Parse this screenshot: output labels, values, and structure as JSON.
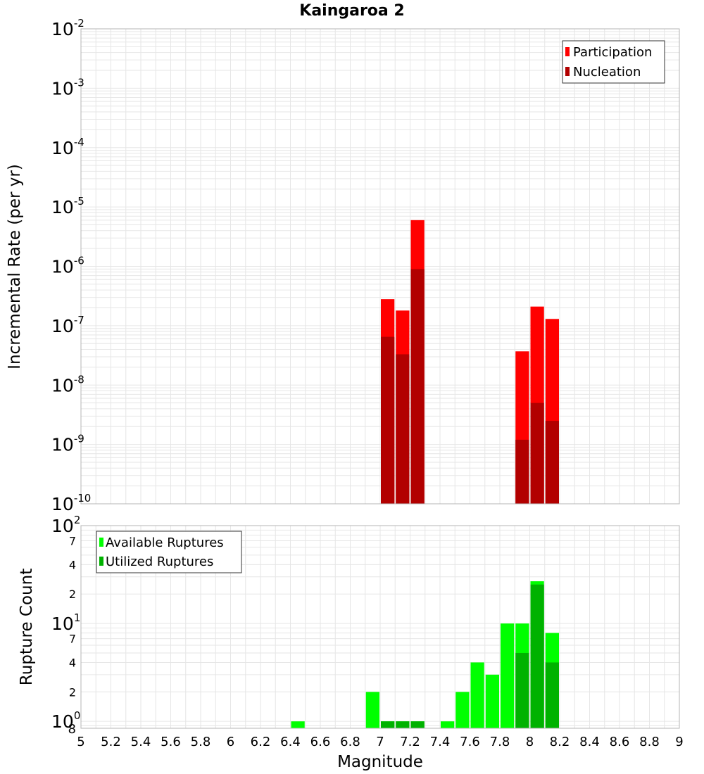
{
  "colors": {
    "participation": "#ff0000",
    "nucleation": "#b20000",
    "available": "#00ff00",
    "utilized": "#00b200",
    "grid": "#e6e6e6",
    "frame": "#b4b4b4"
  },
  "chart_data": [
    {
      "type": "bar",
      "title": "Kaingaroa 2",
      "ylabel": "Incremental Rate (per yr)",
      "xlabel": "",
      "y_scale": "log",
      "ylim": [
        1e-10,
        0.01
      ],
      "xlim": [
        5,
        9
      ],
      "y_tick_labels": [
        {
          "value": 1e-10,
          "base": "10",
          "exp": "-10"
        },
        {
          "value": 1e-09,
          "base": "10",
          "exp": "-9"
        },
        {
          "value": 1e-08,
          "base": "10",
          "exp": "-8"
        },
        {
          "value": 1e-07,
          "base": "10",
          "exp": "-7"
        },
        {
          "value": 1e-06,
          "base": "10",
          "exp": "-6"
        },
        {
          "value": 1e-05,
          "base": "10",
          "exp": "-5"
        },
        {
          "value": 0.0001,
          "base": "10",
          "exp": "-4"
        },
        {
          "value": 0.001,
          "base": "10",
          "exp": "-3"
        },
        {
          "value": 0.01,
          "base": "10",
          "exp": "-2"
        }
      ],
      "legend": {
        "position": "top-right",
        "entries": [
          "Participation",
          "Nucleation"
        ]
      },
      "grid": true,
      "bar_width": 0.1,
      "series": [
        {
          "name": "Participation",
          "x": [
            7.05,
            7.15,
            7.25,
            7.95,
            8.05,
            8.15
          ],
          "values": [
            2.8e-07,
            1.8e-07,
            6e-06,
            3.7e-08,
            2.1e-07,
            1.3e-07
          ]
        },
        {
          "name": "Nucleation",
          "x": [
            7.05,
            7.15,
            7.25,
            7.95,
            8.05,
            8.15
          ],
          "values": [
            6.5e-08,
            3.3e-08,
            9e-07,
            1.2e-09,
            5e-09,
            2.5e-09
          ]
        }
      ]
    },
    {
      "type": "bar",
      "title": "",
      "ylabel": "Rupture Count",
      "xlabel": "Magnitude",
      "y_scale": "log",
      "ylim": [
        0.85,
        100
      ],
      "xlim": [
        5,
        9
      ],
      "x_ticks": [
        "5",
        "5.2",
        "5.4",
        "5.6",
        "5.8",
        "6",
        "6.2",
        "6.4",
        "6.6",
        "6.8",
        "7",
        "7.2",
        "7.4",
        "7.6",
        "7.8",
        "8",
        "8.2",
        "8.4",
        "8.6",
        "8.8",
        "9"
      ],
      "y_tick_labels": [
        {
          "value": 1,
          "base": "10",
          "exp": "0"
        },
        {
          "value": 10,
          "base": "10",
          "exp": "1"
        },
        {
          "value": 100,
          "base": "10",
          "exp": "2"
        }
      ],
      "y_minor_labels": [
        {
          "value": 2,
          "label": "2"
        },
        {
          "value": 4,
          "label": "4"
        },
        {
          "value": 7,
          "label": "7"
        },
        {
          "value": 20,
          "label": "2"
        },
        {
          "value": 40,
          "label": "4"
        },
        {
          "value": 70,
          "label": "7"
        }
      ],
      "y_bottom_label": "8",
      "legend": {
        "position": "top-left",
        "entries": [
          "Available Ruptures",
          "Utilized Ruptures"
        ]
      },
      "grid": true,
      "bar_width": 0.1,
      "series": [
        {
          "name": "Available Ruptures",
          "x": [
            6.45,
            6.95,
            7.05,
            7.15,
            7.25,
            7.45,
            7.55,
            7.65,
            7.75,
            7.85,
            7.95,
            8.05,
            8.15
          ],
          "values": [
            1,
            2,
            1,
            1,
            1,
            1,
            2,
            4,
            3,
            10,
            10,
            27,
            8
          ]
        },
        {
          "name": "Utilized Ruptures",
          "x": [
            7.05,
            7.15,
            7.25,
            7.95,
            8.05,
            8.15
          ],
          "values": [
            1,
            1,
            1,
            5,
            25,
            4
          ]
        }
      ]
    }
  ]
}
